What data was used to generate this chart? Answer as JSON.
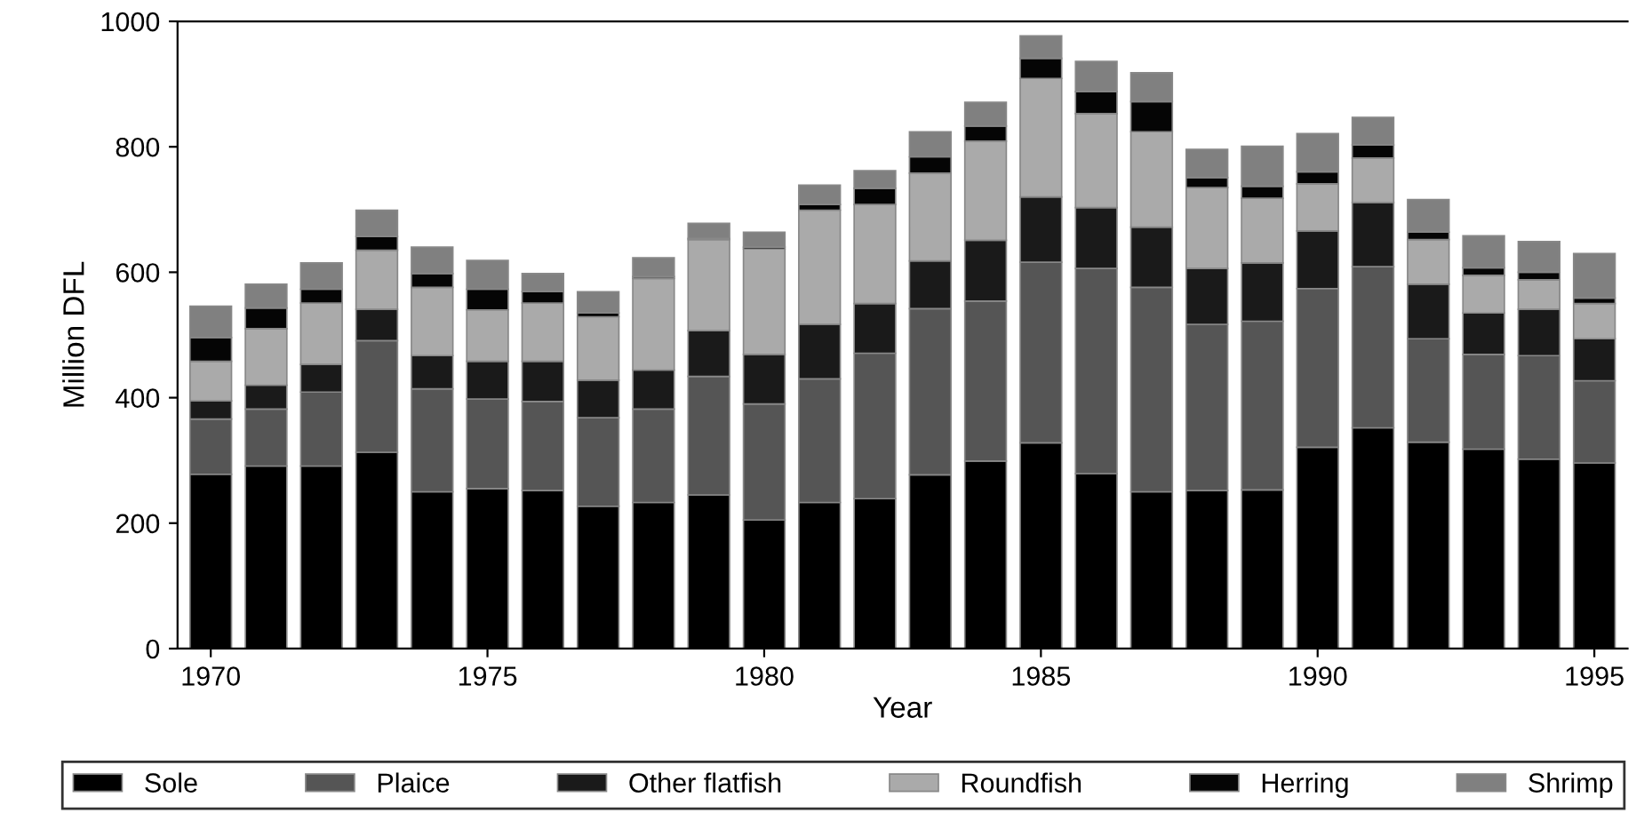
{
  "chart_data": {
    "type": "bar",
    "stacked": true,
    "xlabel": "Year",
    "ylabel": "Million DFL",
    "x": [
      1970,
      1971,
      1972,
      1973,
      1974,
      1975,
      1976,
      1977,
      1978,
      1979,
      1980,
      1981,
      1982,
      1983,
      1984,
      1985,
      1986,
      1987,
      1988,
      1989,
      1990,
      1991,
      1992,
      1993,
      1994,
      1995
    ],
    "xlim": [
      1969.4,
      1995.6
    ],
    "xticks": [
      1970,
      1975,
      1980,
      1985,
      1990,
      1995
    ],
    "ylim": [
      0,
      1000
    ],
    "yticks": [
      0,
      200,
      400,
      600,
      800,
      1000
    ],
    "grid": false,
    "legend": "bottom",
    "series": [
      {
        "name": "Sole",
        "color": "#000000",
        "values": [
          278,
          291,
          291,
          313,
          250,
          255,
          252,
          227,
          233,
          245,
          205,
          233,
          239,
          277,
          299,
          328,
          279,
          250,
          252,
          253,
          321,
          352,
          329,
          318,
          302,
          296
        ]
      },
      {
        "name": "Plaice",
        "color": "#555555",
        "values": [
          88,
          91,
          118,
          178,
          164,
          143,
          142,
          141,
          149,
          189,
          185,
          197,
          232,
          265,
          255,
          288,
          327,
          326,
          265,
          269,
          253,
          257,
          165,
          151,
          165,
          131
        ]
      },
      {
        "name": "Other flatfish",
        "color": "#1a1a1a",
        "values": [
          29,
          38,
          44,
          50,
          53,
          60,
          64,
          60,
          62,
          73,
          79,
          87,
          79,
          76,
          97,
          104,
          97,
          96,
          89,
          93,
          92,
          102,
          87,
          66,
          74,
          67
        ]
      },
      {
        "name": "Roundfish",
        "color": "#aaaaaa",
        "values": [
          63,
          90,
          98,
          94,
          109,
          82,
          93,
          101,
          146,
          145,
          168,
          182,
          158,
          140,
          158,
          189,
          150,
          152,
          129,
          103,
          75,
          71,
          71,
          60,
          47,
          56
        ]
      },
      {
        "name": "Herring",
        "color": "#050505",
        "values": [
          38,
          33,
          22,
          22,
          22,
          33,
          18,
          6,
          3,
          2,
          3,
          9,
          26,
          26,
          24,
          32,
          35,
          48,
          16,
          19,
          19,
          21,
          12,
          12,
          12,
          9
        ]
      },
      {
        "name": "Shrimp",
        "color": "#808080",
        "values": [
          50,
          38,
          42,
          42,
          42,
          46,
          29,
          34,
          30,
          24,
          24,
          31,
          28,
          40,
          38,
          36,
          48,
          46,
          45,
          64,
          61,
          44,
          52,
          51,
          49,
          71
        ]
      }
    ]
  }
}
